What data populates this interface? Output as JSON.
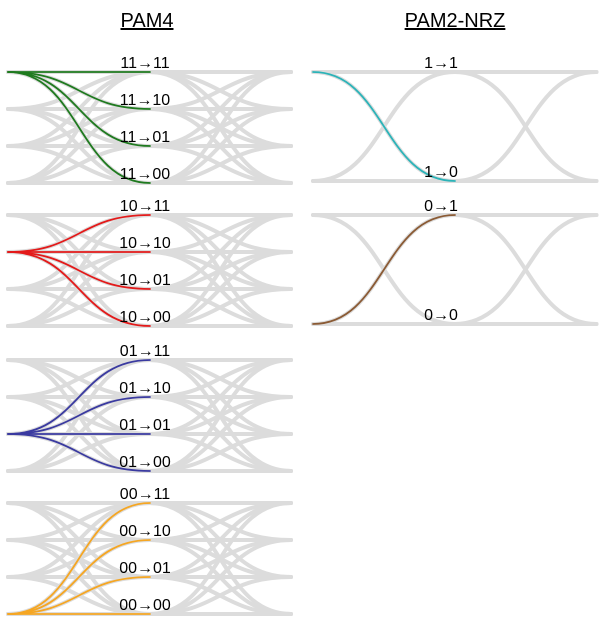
{
  "pam4": {
    "title": "PAM4",
    "groups": [
      {
        "from": "11",
        "color": "#1f7a1f",
        "labels": [
          "11→11",
          "11→10",
          "11→01",
          "11→00"
        ]
      },
      {
        "from": "10",
        "color": "#e31a1a",
        "labels": [
          "10→11",
          "10→10",
          "10→01",
          "10→00"
        ]
      },
      {
        "from": "01",
        "color": "#3a3aa0",
        "labels": [
          "01→11",
          "01→10",
          "01→01",
          "01→00"
        ]
      },
      {
        "from": "00",
        "color": "#f5a623",
        "labels": [
          "00→11",
          "00→10",
          "00→01",
          "00→00"
        ]
      }
    ]
  },
  "nrz": {
    "title": "PAM2-NRZ",
    "groups": [
      {
        "from": "1",
        "color": "#2bb3b8",
        "labels": [
          "1→1",
          "1→0"
        ]
      },
      {
        "from": "0",
        "color": "#8a5a34",
        "labels": [
          "0→1",
          "0→0"
        ]
      }
    ]
  },
  "colors": {
    "eye_trace": "#dcdcdc",
    "background": "#ffffff"
  }
}
